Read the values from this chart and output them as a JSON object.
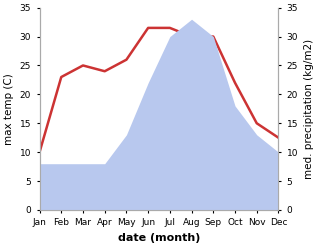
{
  "months": [
    "Jan",
    "Feb",
    "Mar",
    "Apr",
    "May",
    "Jun",
    "Jul",
    "Aug",
    "Sep",
    "Oct",
    "Nov",
    "Dec"
  ],
  "temperature": [
    10,
    23,
    25,
    24,
    26,
    31.5,
    31.5,
    30,
    30,
    22,
    15,
    12.5
  ],
  "precipitation": [
    8,
    8,
    8,
    8,
    13,
    22,
    30,
    33,
    30,
    18,
    13,
    10
  ],
  "temp_color": "#cc3333",
  "precip_color": "#b8c8ee",
  "ylim_left": [
    0,
    35
  ],
  "ylim_right": [
    0,
    35
  ],
  "xlabel": "date (month)",
  "ylabel_left": "max temp (C)",
  "ylabel_right": "med. precipitation (kg/m2)",
  "bg_color": "#ffffff",
  "temp_linewidth": 1.8,
  "left_yticks": [
    0,
    5,
    10,
    15,
    20,
    25,
    30,
    35
  ],
  "right_yticks": [
    0,
    5,
    10,
    15,
    20,
    25,
    30,
    35
  ],
  "spine_color": "#aaaaaa",
  "tick_fontsize": 6.5,
  "label_fontsize": 7.5,
  "xlabel_fontsize": 8,
  "xlabel_fontweight": "bold"
}
